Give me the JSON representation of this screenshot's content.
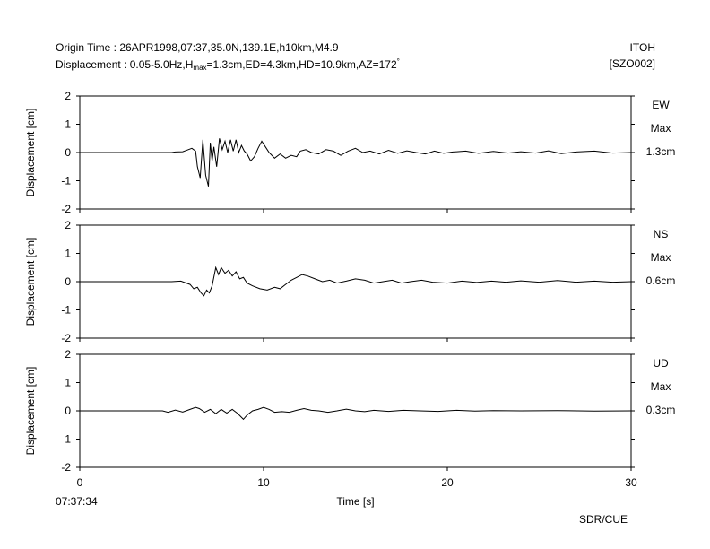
{
  "header": {
    "origin_line": "Origin Time : 26APR1998,07:37,35.0N,139.1E,h10km,M4.9",
    "disp_prefix": "Displacement : 0.05-5.0Hz,H",
    "disp_sub": "max",
    "disp_mid": "=1.3cm,ED=4.3km,HD=10.9km,AZ=172",
    "disp_sup": "°",
    "station": "ITOH",
    "code": "[SZO002]"
  },
  "footer": {
    "start_time": "07:37:34",
    "brand": "SDR/CUE"
  },
  "chart_data": {
    "type": "line",
    "xlabel": "Time [s]",
    "xlim": [
      0,
      30
    ],
    "xticks": [
      "0",
      "10",
      "20",
      "30"
    ],
    "ylabel": "Displacement [cm]",
    "ylim": [
      -2,
      2
    ],
    "yticks": [
      "2",
      "1",
      "0",
      "-1",
      "-2"
    ],
    "grid": false,
    "panels": [
      {
        "component": "EW",
        "max_label": "Max",
        "max_value": "1.3cm",
        "points": [
          [
            0,
            0
          ],
          [
            5,
            0
          ],
          [
            5.2,
            0.02
          ],
          [
            5.6,
            0.03
          ],
          [
            5.9,
            0.1
          ],
          [
            6.1,
            0.15
          ],
          [
            6.3,
            0.05
          ],
          [
            6.4,
            -0.5
          ],
          [
            6.55,
            -0.9
          ],
          [
            6.7,
            0.45
          ],
          [
            6.85,
            -0.8
          ],
          [
            7.0,
            -1.2
          ],
          [
            7.1,
            0.35
          ],
          [
            7.2,
            -0.3
          ],
          [
            7.3,
            0.2
          ],
          [
            7.45,
            -0.5
          ],
          [
            7.6,
            0.5
          ],
          [
            7.75,
            0.1
          ],
          [
            7.9,
            0.4
          ],
          [
            8.05,
            0.0
          ],
          [
            8.2,
            0.45
          ],
          [
            8.35,
            0.05
          ],
          [
            8.5,
            0.45
          ],
          [
            8.65,
            0.0
          ],
          [
            8.8,
            0.25
          ],
          [
            8.95,
            0.05
          ],
          [
            9.1,
            -0.05
          ],
          [
            9.3,
            -0.3
          ],
          [
            9.5,
            -0.15
          ],
          [
            9.7,
            0.15
          ],
          [
            9.9,
            0.4
          ],
          [
            10.1,
            0.2
          ],
          [
            10.3,
            0.0
          ],
          [
            10.6,
            -0.2
          ],
          [
            10.9,
            -0.05
          ],
          [
            11.2,
            -0.2
          ],
          [
            11.5,
            -0.1
          ],
          [
            11.8,
            -0.15
          ],
          [
            12.0,
            0.05
          ],
          [
            12.3,
            0.1
          ],
          [
            12.6,
            0.0
          ],
          [
            13.0,
            -0.05
          ],
          [
            13.4,
            0.1
          ],
          [
            13.8,
            0.05
          ],
          [
            14.2,
            -0.1
          ],
          [
            14.6,
            0.05
          ],
          [
            15.0,
            0.15
          ],
          [
            15.4,
            0.0
          ],
          [
            15.8,
            0.05
          ],
          [
            16.3,
            -0.05
          ],
          [
            16.8,
            0.08
          ],
          [
            17.3,
            -0.03
          ],
          [
            17.8,
            0.06
          ],
          [
            18.3,
            0.0
          ],
          [
            18.8,
            -0.05
          ],
          [
            19.3,
            0.05
          ],
          [
            19.8,
            -0.03
          ],
          [
            20.3,
            0.02
          ],
          [
            21.0,
            0.05
          ],
          [
            21.7,
            -0.03
          ],
          [
            22.5,
            0.04
          ],
          [
            23.3,
            -0.02
          ],
          [
            24.0,
            0.03
          ],
          [
            24.8,
            -0.02
          ],
          [
            25.5,
            0.06
          ],
          [
            26.2,
            -0.04
          ],
          [
            27.0,
            0.02
          ],
          [
            28.0,
            0.05
          ],
          [
            29.0,
            -0.02
          ],
          [
            30,
            0.0
          ]
        ]
      },
      {
        "component": "NS",
        "max_label": "Max",
        "max_value": "0.6cm",
        "points": [
          [
            0,
            0
          ],
          [
            5,
            0
          ],
          [
            5.5,
            0.02
          ],
          [
            5.8,
            -0.05
          ],
          [
            6.0,
            -0.1
          ],
          [
            6.2,
            -0.25
          ],
          [
            6.4,
            -0.2
          ],
          [
            6.6,
            -0.4
          ],
          [
            6.75,
            -0.5
          ],
          [
            6.9,
            -0.3
          ],
          [
            7.05,
            -0.4
          ],
          [
            7.2,
            -0.15
          ],
          [
            7.4,
            0.5
          ],
          [
            7.55,
            0.25
          ],
          [
            7.7,
            0.5
          ],
          [
            7.9,
            0.3
          ],
          [
            8.1,
            0.4
          ],
          [
            8.3,
            0.2
          ],
          [
            8.5,
            0.35
          ],
          [
            8.7,
            0.1
          ],
          [
            8.9,
            0.15
          ],
          [
            9.1,
            -0.05
          ],
          [
            9.4,
            -0.15
          ],
          [
            9.8,
            -0.25
          ],
          [
            10.2,
            -0.3
          ],
          [
            10.6,
            -0.2
          ],
          [
            10.9,
            -0.25
          ],
          [
            11.2,
            -0.1
          ],
          [
            11.5,
            0.05
          ],
          [
            11.8,
            0.15
          ],
          [
            12.1,
            0.25
          ],
          [
            12.4,
            0.2
          ],
          [
            12.8,
            0.1
          ],
          [
            13.2,
            0.0
          ],
          [
            13.6,
            0.05
          ],
          [
            14.0,
            -0.05
          ],
          [
            14.5,
            0.02
          ],
          [
            15.0,
            0.1
          ],
          [
            15.5,
            0.05
          ],
          [
            16.0,
            -0.05
          ],
          [
            16.5,
            0.0
          ],
          [
            17.0,
            0.05
          ],
          [
            17.5,
            -0.05
          ],
          [
            18.0,
            0.0
          ],
          [
            18.6,
            0.05
          ],
          [
            19.2,
            -0.02
          ],
          [
            20.0,
            -0.05
          ],
          [
            20.8,
            0.02
          ],
          [
            21.6,
            -0.03
          ],
          [
            22.4,
            0.02
          ],
          [
            23.2,
            -0.02
          ],
          [
            24.0,
            0.03
          ],
          [
            25.0,
            -0.02
          ],
          [
            26.0,
            0.04
          ],
          [
            27.0,
            -0.02
          ],
          [
            28.0,
            0.02
          ],
          [
            29.0,
            -0.02
          ],
          [
            30,
            0.0
          ]
        ]
      },
      {
        "component": "UD",
        "max_label": "Max",
        "max_value": "0.3cm",
        "points": [
          [
            0,
            0
          ],
          [
            4.5,
            0
          ],
          [
            4.8,
            -0.05
          ],
          [
            5.2,
            0.03
          ],
          [
            5.6,
            -0.04
          ],
          [
            6.0,
            0.05
          ],
          [
            6.3,
            0.12
          ],
          [
            6.5,
            0.08
          ],
          [
            6.8,
            -0.05
          ],
          [
            7.1,
            0.05
          ],
          [
            7.4,
            -0.1
          ],
          [
            7.7,
            0.05
          ],
          [
            8.0,
            -0.08
          ],
          [
            8.3,
            0.05
          ],
          [
            8.6,
            -0.1
          ],
          [
            8.9,
            -0.3
          ],
          [
            9.1,
            -0.15
          ],
          [
            9.4,
            0.0
          ],
          [
            9.7,
            0.05
          ],
          [
            10.0,
            0.12
          ],
          [
            10.3,
            0.05
          ],
          [
            10.6,
            -0.05
          ],
          [
            11.0,
            -0.03
          ],
          [
            11.4,
            -0.05
          ],
          [
            11.8,
            0.02
          ],
          [
            12.2,
            0.08
          ],
          [
            12.6,
            0.02
          ],
          [
            13.0,
            0.0
          ],
          [
            13.5,
            -0.05
          ],
          [
            14.0,
            0.0
          ],
          [
            14.5,
            0.06
          ],
          [
            15.0,
            0.0
          ],
          [
            15.5,
            -0.03
          ],
          [
            16.0,
            0.02
          ],
          [
            16.8,
            -0.02
          ],
          [
            17.6,
            0.02
          ],
          [
            18.5,
            0.0
          ],
          [
            19.5,
            -0.02
          ],
          [
            20.5,
            0.02
          ],
          [
            21.5,
            -0.01
          ],
          [
            22.5,
            0.01
          ],
          [
            24.0,
            0.0
          ],
          [
            26.0,
            0.01
          ],
          [
            28.0,
            -0.01
          ],
          [
            30,
            0.0
          ]
        ]
      }
    ]
  }
}
